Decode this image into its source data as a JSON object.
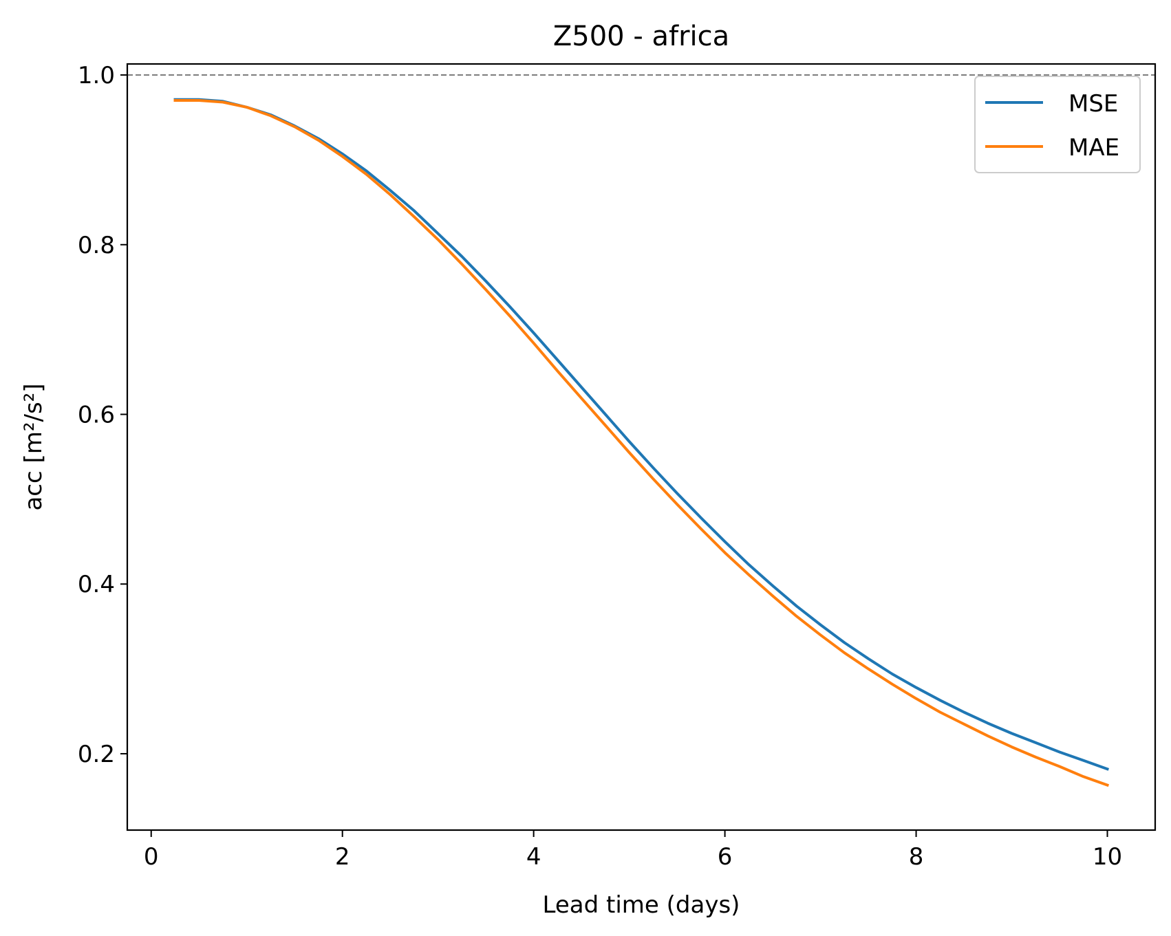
{
  "chart_data": {
    "type": "line",
    "title": "Z500 - africa",
    "xlabel": "Lead time (days)",
    "ylabel": "acc [m²/s²]",
    "xlim": [
      -0.25,
      10.5
    ],
    "ylim": [
      0.11,
      1.013
    ],
    "xticks": [
      0,
      2,
      4,
      6,
      8,
      10
    ],
    "xtick_labels": [
      "0",
      "2",
      "4",
      "6",
      "8",
      "10"
    ],
    "yticks": [
      0.2,
      0.4,
      0.6,
      0.8,
      1.0
    ],
    "ytick_labels": [
      "0.2",
      "0.4",
      "0.6",
      "0.8",
      "1.0"
    ],
    "reference_line": {
      "y": 1.0,
      "style": "dashed",
      "color": "#808080"
    },
    "legend": {
      "position": "top-right"
    },
    "grid": false,
    "x": [
      0.25,
      0.5,
      0.75,
      1.0,
      1.25,
      1.5,
      1.75,
      2.0,
      2.25,
      2.5,
      2.75,
      3.0,
      3.25,
      3.5,
      3.75,
      4.0,
      4.25,
      4.5,
      4.75,
      5.0,
      5.25,
      5.5,
      5.75,
      6.0,
      6.25,
      6.5,
      6.75,
      7.0,
      7.25,
      7.5,
      7.75,
      8.0,
      8.25,
      8.5,
      8.75,
      9.0,
      9.25,
      9.5,
      9.75,
      10.0
    ],
    "series": [
      {
        "name": "MSE",
        "color": "#1f77b4",
        "values": [
          0.971,
          0.971,
          0.969,
          0.962,
          0.953,
          0.94,
          0.925,
          0.907,
          0.887,
          0.864,
          0.84,
          0.813,
          0.786,
          0.757,
          0.727,
          0.696,
          0.664,
          0.632,
          0.6,
          0.568,
          0.537,
          0.507,
          0.478,
          0.45,
          0.423,
          0.398,
          0.374,
          0.352,
          0.331,
          0.312,
          0.294,
          0.278,
          0.263,
          0.249,
          0.236,
          0.224,
          0.213,
          0.202,
          0.192,
          0.182
        ]
      },
      {
        "name": "MAE",
        "color": "#ff7f0e",
        "values": [
          0.97,
          0.97,
          0.968,
          0.962,
          0.952,
          0.939,
          0.923,
          0.904,
          0.883,
          0.859,
          0.833,
          0.806,
          0.777,
          0.747,
          0.716,
          0.684,
          0.651,
          0.619,
          0.587,
          0.555,
          0.524,
          0.494,
          0.465,
          0.437,
          0.411,
          0.386,
          0.362,
          0.34,
          0.319,
          0.3,
          0.282,
          0.265,
          0.249,
          0.235,
          0.221,
          0.208,
          0.196,
          0.185,
          0.173,
          0.163
        ]
      }
    ]
  }
}
